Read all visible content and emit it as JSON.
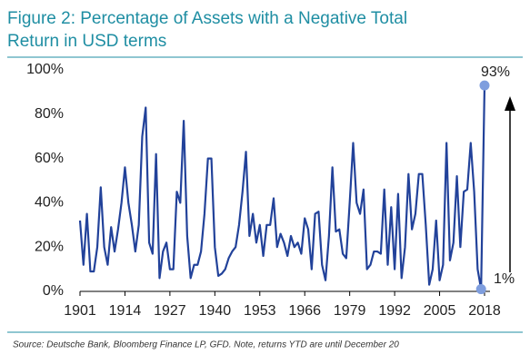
{
  "chart_data": {
    "type": "line",
    "title": [
      "Figure 2: Percentage of Assets with a Negative Total",
      "Return in USD terms"
    ],
    "source": "Source: Deutsche Bank, Bloomberg Finance LP, GFD. Note, returns YTD are until December 20",
    "annotations": [
      "93%",
      "1%"
    ],
    "xlim": [
      1901,
      2018
    ],
    "xticks": [
      1901,
      1914,
      1927,
      1940,
      1953,
      1966,
      1979,
      1992,
      2005,
      2018
    ],
    "ylim": [
      0,
      100
    ],
    "yticks": [
      {
        "value": 0,
        "label": "0%"
      },
      {
        "value": 20,
        "label": "20%"
      },
      {
        "value": 40,
        "label": "40%"
      },
      {
        "value": 60,
        "label": "60%"
      },
      {
        "value": 80,
        "label": "80%"
      },
      {
        "value": 100,
        "label": "100%"
      }
    ],
    "x": [
      1901,
      1902,
      1903,
      1904,
      1905,
      1906,
      1907,
      1908,
      1909,
      1910,
      1911,
      1912,
      1913,
      1914,
      1915,
      1916,
      1917,
      1918,
      1919,
      1920,
      1921,
      1922,
      1923,
      1924,
      1925,
      1926,
      1927,
      1928,
      1929,
      1930,
      1931,
      1932,
      1933,
      1934,
      1935,
      1936,
      1937,
      1938,
      1939,
      1940,
      1941,
      1942,
      1943,
      1944,
      1945,
      1946,
      1947,
      1948,
      1949,
      1950,
      1951,
      1952,
      1953,
      1954,
      1955,
      1956,
      1957,
      1958,
      1959,
      1960,
      1961,
      1962,
      1963,
      1964,
      1965,
      1966,
      1967,
      1968,
      1969,
      1970,
      1971,
      1972,
      1973,
      1974,
      1975,
      1976,
      1977,
      1978,
      1979,
      1980,
      1981,
      1982,
      1983,
      1984,
      1985,
      1986,
      1987,
      1988,
      1989,
      1990,
      1991,
      1992,
      1993,
      1994,
      1995,
      1996,
      1997,
      1998,
      1999,
      2000,
      2001,
      2002,
      2003,
      2004,
      2005,
      2006,
      2007,
      2008,
      2009,
      2010,
      2011,
      2012,
      2013,
      2014,
      2015,
      2016,
      2017,
      2018
    ],
    "series": [
      {
        "color": "#22429a",
        "marker_color": "#7f9ede",
        "values": [
          32,
          12,
          35,
          9,
          9,
          20,
          47,
          20,
          12,
          29,
          18,
          28,
          40,
          56,
          40,
          30,
          18,
          30,
          70,
          83,
          22,
          17,
          62,
          6,
          18,
          22,
          10,
          10,
          45,
          40,
          77,
          25,
          6,
          12,
          12,
          18,
          35,
          60,
          60,
          20,
          7,
          8,
          10,
          15,
          18,
          20,
          30,
          45,
          63,
          25,
          35,
          22,
          30,
          16,
          30,
          30,
          42,
          20,
          26,
          22,
          16,
          25,
          20,
          22,
          17,
          33,
          28,
          10,
          35,
          36,
          12,
          5,
          25,
          56,
          27,
          28,
          17,
          15,
          40,
          67,
          40,
          35,
          46,
          10,
          12,
          18,
          18,
          17,
          46,
          12,
          38,
          10,
          44,
          6,
          20,
          53,
          28,
          35,
          53,
          53,
          30,
          3,
          10,
          32,
          5,
          12,
          67,
          14,
          22,
          52,
          20,
          45,
          46,
          67,
          45,
          10,
          1,
          93
        ]
      }
    ]
  }
}
